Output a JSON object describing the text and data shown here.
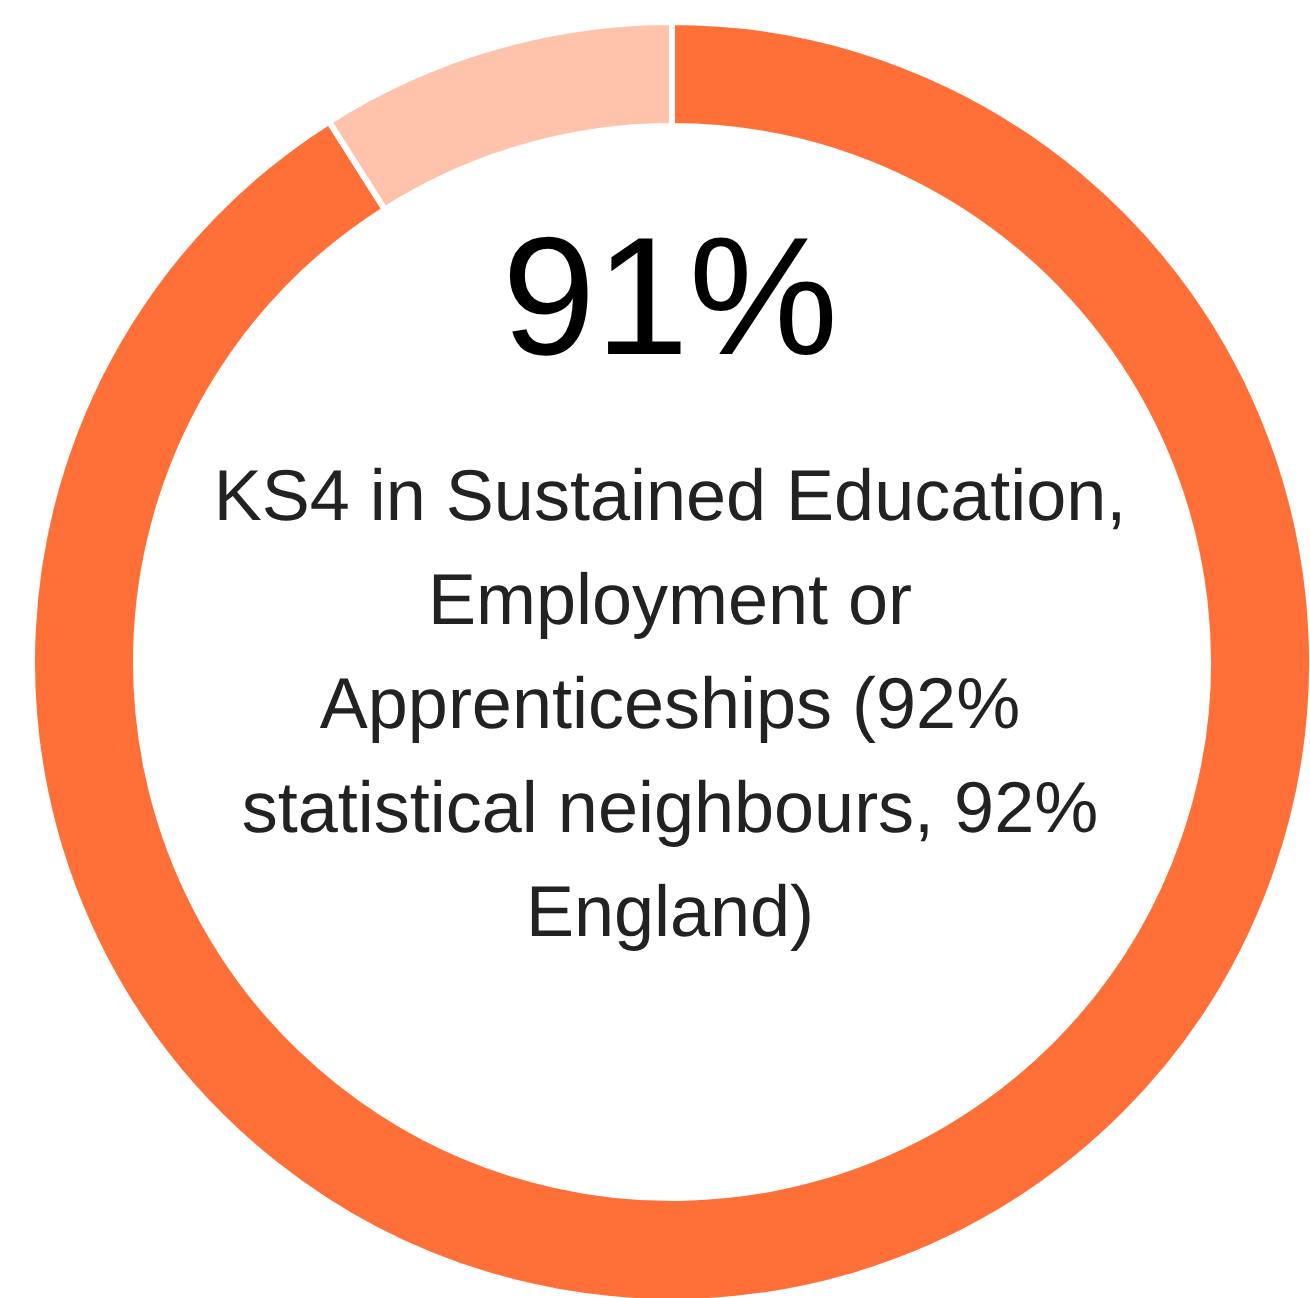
{
  "chart_data": {
    "type": "donut",
    "categories": [
      null,
      null
    ],
    "values": [
      91,
      9
    ],
    "colors": [
      "#ff7038",
      "#ffc3ab"
    ],
    "value_labels": [
      "91%",
      null
    ],
    "annotations": [
      "KS4 in Sustained Education, Employment or Apprenticeships (92% statistical neighbours, 92% England)"
    ]
  }
}
